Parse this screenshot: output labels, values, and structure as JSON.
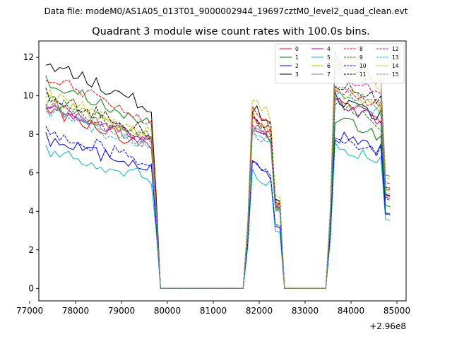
{
  "chart_data": {
    "type": "line",
    "suptitle": "Data file: modeM0/AS1A05_013T01_9000002944_19697cztM0_level2_quad_clean.evt",
    "title": "Quadrant 3 module wise count rates with 100.0s bins.",
    "xlabel": "",
    "ylabel": "",
    "x_offset_label": "+2.96e8",
    "xlim": [
      77200,
      85200
    ],
    "ylim": [
      -0.65,
      12.85
    ],
    "xticks": [
      77000,
      78000,
      79000,
      80000,
      81000,
      82000,
      83000,
      84000,
      85000
    ],
    "xtick_labels": [
      "77000",
      "78000",
      "79000",
      "80000",
      "81000",
      "82000",
      "83000",
      "84000",
      "85000"
    ],
    "yticks": [
      0,
      2,
      4,
      6,
      8,
      10,
      12
    ],
    "ytick_labels": [
      "0",
      "2",
      "4",
      "6",
      "8",
      "10",
      "12"
    ],
    "segments": [
      {
        "start": 77350,
        "end": 79800
      },
      {
        "start": 81750,
        "end": 82450
      },
      {
        "start": 83500,
        "end": 84850
      }
    ],
    "gaps_value": 0,
    "bin_seconds": 100,
    "legend_position": "upper right",
    "series": [
      {
        "name": "0",
        "color": "#ff0000",
        "dash": "solid",
        "levels": [
          9.3,
          9.1,
          10.0
        ]
      },
      {
        "name": "1",
        "color": "#008000",
        "dash": "solid",
        "levels": [
          10.8,
          8.7,
          8.9
        ]
      },
      {
        "name": "2",
        "color": "#0000ff",
        "dash": "solid",
        "levels": [
          7.8,
          6.6,
          8.1
        ]
      },
      {
        "name": "3",
        "color": "#000000",
        "dash": "solid",
        "levels": [
          11.8,
          9.5,
          10.1
        ]
      },
      {
        "name": "4",
        "color": "#bf00bf",
        "dash": "solid",
        "levels": [
          9.5,
          8.8,
          9.8
        ]
      },
      {
        "name": "5",
        "color": "#00bfbf",
        "dash": "solid",
        "levels": [
          7.2,
          6.1,
          7.4
        ]
      },
      {
        "name": "6",
        "color": "#bfbf00",
        "dash": "solid",
        "levels": [
          9.8,
          9.0,
          10.6
        ]
      },
      {
        "name": "7",
        "color": "#808080",
        "dash": "solid",
        "levels": [
          9.5,
          8.6,
          12.2
        ]
      },
      {
        "name": "8",
        "color": "#ff0000",
        "dash": "dashed",
        "levels": [
          11.0,
          9.4,
          10.7
        ]
      },
      {
        "name": "9",
        "color": "#008000",
        "dash": "dashed",
        "levels": [
          9.8,
          8.5,
          9.6
        ]
      },
      {
        "name": "10",
        "color": "#0000ff",
        "dash": "dashed",
        "levels": [
          8.2,
          6.8,
          8.0
        ]
      },
      {
        "name": "11",
        "color": "#000000",
        "dash": "dashed",
        "levels": [
          10.1,
          9.2,
          10.9
        ]
      },
      {
        "name": "12",
        "color": "#bf00bf",
        "dash": "dashed",
        "levels": [
          9.6,
          8.9,
          11.4
        ]
      },
      {
        "name": "13",
        "color": "#00bfbf",
        "dash": "dashed",
        "levels": [
          9.2,
          8.3,
          10.3
        ]
      },
      {
        "name": "14",
        "color": "#bfbf00",
        "dash": "dashed",
        "levels": [
          10.1,
          9.9,
          11.9
        ]
      },
      {
        "name": "15",
        "color": "#808080",
        "dash": "dashed",
        "levels": [
          9.4,
          8.4,
          10.7
        ]
      }
    ]
  }
}
